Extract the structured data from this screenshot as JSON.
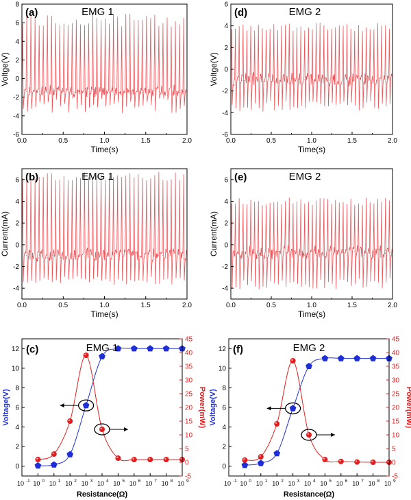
{
  "colors": {
    "signal": "#e8585c",
    "signal_dark": "#b31b1b",
    "voltage": "#1f2fd6",
    "power": "#e02020",
    "axis": "#000000"
  },
  "chart_data": [
    {
      "id": "a",
      "type": "line",
      "panel_label": "(a)",
      "title": "EMG 1",
      "xlabel": "Time(s)",
      "ylabel": "Voltge(V)",
      "xlim": [
        0,
        2
      ],
      "ylim": [
        -6,
        8
      ],
      "xticks": [
        0,
        0.5,
        1,
        1.5,
        2
      ],
      "xtick_labels": [
        "0.0",
        "0.5",
        "1.0",
        "1.5",
        "2.0"
      ],
      "yticks": [
        -6,
        -4,
        -2,
        0,
        2,
        4,
        6,
        8
      ],
      "ytick_labels": [
        "-6",
        "-4",
        "-2",
        "0",
        "2",
        "4",
        "6",
        "8"
      ],
      "signal": {
        "cycles": 40,
        "peak_mean": 6.3,
        "peak_var": 0.8,
        "trough_mean": -2.9,
        "trough_var": 0.8,
        "baseline": -1.4,
        "seed": 11
      }
    },
    {
      "id": "b",
      "type": "line",
      "panel_label": "(b)",
      "title": "EMG 1",
      "xlabel": "Time(s)",
      "ylabel": "Current(mA)",
      "xlim": [
        0,
        2
      ],
      "ylim": [
        -5,
        7
      ],
      "xticks": [
        0,
        0.5,
        1,
        1.5,
        2
      ],
      "xtick_labels": [
        "0.0",
        "0.5",
        "1.0",
        "1.5",
        "2.0"
      ],
      "yticks": [
        -4,
        -2,
        0,
        2,
        4,
        6
      ],
      "ytick_labels": [
        "-4",
        "-2",
        "0",
        "2",
        "4",
        "6"
      ],
      "signal": {
        "cycles": 40,
        "peak_mean": 6.3,
        "peak_var": 0.4,
        "trough_mean": -3.3,
        "trough_var": 0.4,
        "baseline": -1.0,
        "seed": 23
      }
    },
    {
      "id": "d",
      "type": "line",
      "panel_label": "(d)",
      "title": "EMG 2",
      "xlabel": "Time(s)",
      "ylabel": "Voltge(V)",
      "xlim": [
        0,
        2
      ],
      "ylim": [
        -6,
        6
      ],
      "xticks": [
        0,
        0.5,
        1,
        1.5,
        2
      ],
      "xtick_labels": [
        "0.0",
        "0.5",
        "1.0",
        "1.5",
        "2.0"
      ],
      "yticks": [
        -6,
        -4,
        -2,
        0,
        2,
        4,
        6
      ],
      "ytick_labels": [
        "-6",
        "-4",
        "-2",
        "0",
        "2",
        "4",
        "6"
      ],
      "signal": {
        "cycles": 42,
        "peak_mean": 3.9,
        "peak_var": 0.4,
        "trough_mean": -3.4,
        "trough_var": 0.5,
        "baseline": -1.0,
        "seed": 37
      }
    },
    {
      "id": "e",
      "type": "line",
      "panel_label": "(e)",
      "title": "EMG 2",
      "xlabel": "Time(s)",
      "ylabel": "Current(mA)",
      "xlim": [
        0,
        2
      ],
      "ylim": [
        -5,
        7
      ],
      "xticks": [
        0,
        0.5,
        1,
        1.5,
        2
      ],
      "xtick_labels": [
        "0.0",
        "0.5",
        "1.0",
        "1.5",
        "2.0"
      ],
      "yticks": [
        -4,
        -2,
        0,
        2,
        4,
        6
      ],
      "ytick_labels": [
        "-4",
        "-2",
        "0",
        "2",
        "4",
        "6"
      ],
      "signal": {
        "cycles": 42,
        "peak_mean": 4.0,
        "peak_var": 0.4,
        "trough_mean": -3.6,
        "trough_var": 0.5,
        "baseline": -0.8,
        "seed": 53
      }
    },
    {
      "id": "c",
      "type": "line",
      "panel_label": "(c)",
      "title": "EMG 1",
      "xlabel": "Resistance(Ω)",
      "ylabel": "Voltage(V)",
      "ylabel_right": "Power(mW)",
      "xlog_exponents": [
        -1,
        0,
        1,
        2,
        3,
        4,
        5,
        6,
        7,
        8,
        9
      ],
      "xtick_labels": [
        "10",
        "10",
        "10",
        "10",
        "10",
        "10",
        "10",
        "10",
        "10",
        "10",
        "10"
      ],
      "xtick_exponents": [
        "-1",
        "0",
        "1",
        "2",
        "3",
        "4",
        "5",
        "6",
        "7",
        "8",
        "9"
      ],
      "ylim": [
        -1,
        13
      ],
      "yticks": [
        0,
        2,
        4,
        6,
        8,
        10,
        12
      ],
      "ytick_labels": [
        "0",
        "2",
        "4",
        "6",
        "8",
        "10",
        "12"
      ],
      "y2lim": [
        -5,
        45
      ],
      "y2ticks": [
        -5,
        0,
        5,
        10,
        15,
        20,
        25,
        30,
        35,
        40,
        45
      ],
      "y2tick_labels": [
        "-5",
        "0",
        "5",
        "10",
        "15",
        "20",
        "25",
        "30",
        "35",
        "40",
        "45"
      ],
      "series": [
        {
          "name": "Voltage",
          "axis": "left",
          "marker": "pentagon",
          "x_exp": [
            0,
            1,
            2,
            3,
            4,
            5,
            6,
            7,
            8,
            9
          ],
          "values": [
            0.05,
            0.15,
            1.2,
            6.2,
            11.2,
            12.0,
            12.0,
            12.0,
            12.0,
            12.0
          ]
        },
        {
          "name": "Power",
          "axis": "right",
          "marker": "circle",
          "x_exp": [
            0,
            1,
            2,
            3,
            4,
            5,
            6,
            7,
            8,
            9
          ],
          "values": [
            1.0,
            3.0,
            15.0,
            39.0,
            12.0,
            1.5,
            1.0,
            1.0,
            1.0,
            1.0
          ]
        }
      ],
      "annotations": [
        {
          "type": "ellipse-arrow",
          "target_series": "Voltage",
          "x_exp": 3,
          "value": 6.2,
          "direction": "left"
        },
        {
          "type": "ellipse-arrow",
          "target_series": "Power",
          "x_exp": 4,
          "value": 12.0,
          "direction": "right"
        }
      ]
    },
    {
      "id": "f",
      "type": "line",
      "panel_label": "(f)",
      "title": "EMG 2",
      "xlabel": "Resistance(Ω)",
      "ylabel": "Voltage(V)",
      "ylabel_right": "Power(mW)",
      "xlog_exponents": [
        -1,
        0,
        1,
        2,
        3,
        4,
        5,
        6,
        7,
        8,
        9
      ],
      "xtick_labels": [
        "10",
        "10",
        "10",
        "10",
        "10",
        "10",
        "10",
        "10",
        "10",
        "10",
        "10"
      ],
      "xtick_exponents": [
        "-1",
        "0",
        "1",
        "2",
        "3",
        "4",
        "5",
        "6",
        "7",
        "8",
        "9"
      ],
      "ylim": [
        -1,
        13
      ],
      "yticks": [
        0,
        2,
        4,
        6,
        8,
        10,
        12
      ],
      "ytick_labels": [
        "0",
        "2",
        "4",
        "6",
        "8",
        "10",
        "12"
      ],
      "y2lim": [
        -5,
        45
      ],
      "y2ticks": [
        -5,
        0,
        5,
        10,
        15,
        20,
        25,
        30,
        35,
        40,
        45
      ],
      "y2tick_labels": [
        "-5",
        "0",
        "5",
        "10",
        "15",
        "20",
        "25",
        "30",
        "35",
        "40",
        "45"
      ],
      "series": [
        {
          "name": "Voltage",
          "axis": "left",
          "marker": "pentagon",
          "x_exp": [
            0,
            1,
            2,
            3,
            4,
            5,
            6,
            7,
            8,
            9
          ],
          "values": [
            0.1,
            0.3,
            1.3,
            5.9,
            10.2,
            11.0,
            11.0,
            11.0,
            11.0,
            11.0
          ]
        },
        {
          "name": "Power",
          "axis": "right",
          "marker": "circle",
          "x_exp": [
            0,
            1,
            2,
            3,
            4,
            5,
            6,
            7,
            8,
            9
          ],
          "values": [
            0.8,
            2.0,
            14.0,
            37.0,
            10.0,
            1.0,
            0.3,
            0.1,
            0.0,
            0.0
          ]
        }
      ],
      "annotations": [
        {
          "type": "ellipse-arrow",
          "target_series": "Voltage",
          "x_exp": 3,
          "value": 5.9,
          "direction": "left"
        },
        {
          "type": "ellipse-arrow",
          "target_series": "Power",
          "x_exp": 4,
          "value": 10.0,
          "direction": "right"
        }
      ]
    }
  ]
}
